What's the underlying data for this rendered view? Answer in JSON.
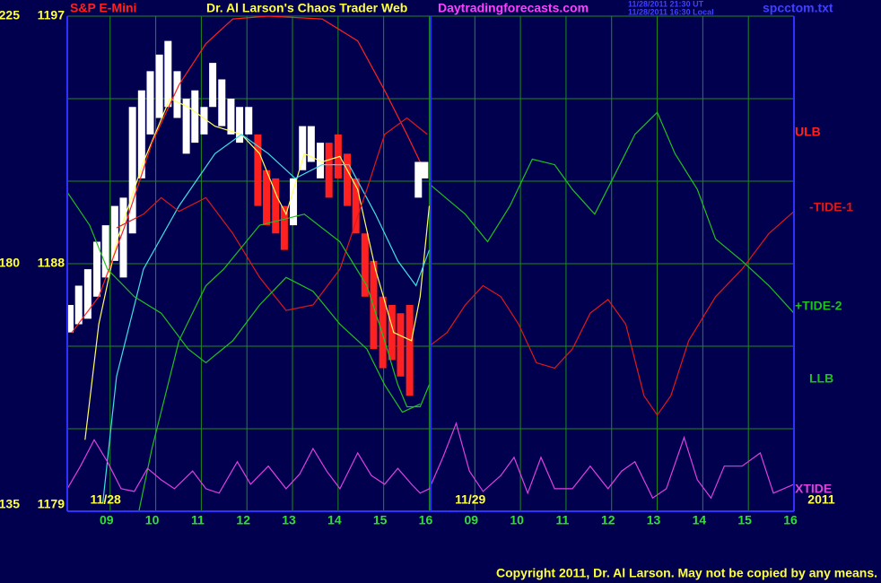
{
  "chart_data": {
    "type": "line",
    "title": "Dr. Al Larson's Chaos Trader Web",
    "instrument": "S&P E-Mini",
    "site": "Daytradingforecasts.com",
    "timestamps": [
      "11/28/2011 21:30 UT",
      "11/28/2011 16:30 Local"
    ],
    "file": "spcctom.txt",
    "copyright": "Copyright 2011, Dr. Al Larson. May not be copied by any means.",
    "xlim": [
      0.06,
      16.0
    ],
    "xticks": [
      {
        "value": 1,
        "label": "09"
      },
      {
        "value": 2,
        "label": "10"
      },
      {
        "value": 3,
        "label": "11"
      },
      {
        "value": 4,
        "label": "12"
      },
      {
        "value": 5,
        "label": "13"
      },
      {
        "value": 6,
        "label": "14"
      },
      {
        "value": 7,
        "label": "15"
      },
      {
        "value": 8,
        "label": "16"
      },
      {
        "value": 9,
        "label": "09"
      },
      {
        "value": 10,
        "label": "10"
      },
      {
        "value": 11,
        "label": "11"
      },
      {
        "value": 12,
        "label": "12"
      },
      {
        "value": 13,
        "label": "13"
      },
      {
        "value": 14,
        "label": "14"
      },
      {
        "value": 15,
        "label": "15"
      },
      {
        "value": 16,
        "label": "16"
      }
    ],
    "date_labels": [
      {
        "text": "11/28",
        "x": 0.9
      },
      {
        "text": "11/29",
        "x": 8.9
      },
      {
        "text": "2011",
        "x": 16.6
      }
    ],
    "ylim": [
      1179,
      1197
    ],
    "yticks": [
      1179,
      1188,
      1197
    ],
    "y2lim": [
      135,
      225
    ],
    "y2ticks": [
      135,
      180,
      225
    ],
    "ygrid": [
      1182,
      1185,
      1191,
      1194
    ],
    "grid": true,
    "price": {
      "x": [
        0.12,
        0.31,
        0.51,
        0.71,
        0.9,
        1.1,
        1.29,
        1.49,
        1.69,
        1.88,
        2.08,
        2.27,
        2.47,
        2.67,
        2.86,
        3.06,
        3.25,
        3.45,
        3.65,
        3.84,
        4.04,
        4.24,
        4.43,
        4.63,
        4.82,
        5.02,
        5.22,
        5.41,
        5.61,
        5.8,
        6.0,
        6.2,
        6.39,
        6.59,
        6.78,
        6.98,
        7.18,
        7.37,
        7.57,
        7.76,
        7.9
      ],
      "high": [
        1186.5,
        1187.2,
        1187.8,
        1188.8,
        1189.4,
        1190.1,
        1190.4,
        1193.7,
        1194.3,
        1195.0,
        1195.6,
        1196.1,
        1195.0,
        1194.0,
        1194.3,
        1193.7,
        1195.3,
        1194.7,
        1194.0,
        1193.7,
        1193.7,
        1192.7,
        1191.4,
        1191.1,
        1190.1,
        1191.1,
        1193.0,
        1193.0,
        1192.4,
        1192.4,
        1192.7,
        1192.0,
        1191.1,
        1189.1,
        1188.1,
        1186.8,
        1186.5,
        1186.2,
        1186.5,
        1191.7,
        1191.7
      ],
      "low": [
        1185.5,
        1185.8,
        1186.0,
        1186.8,
        1187.5,
        1188.1,
        1187.5,
        1189.1,
        1191.1,
        1192.7,
        1193.3,
        1193.7,
        1193.3,
        1192.0,
        1192.4,
        1192.7,
        1193.7,
        1193.0,
        1192.7,
        1192.4,
        1192.7,
        1190.1,
        1189.4,
        1189.1,
        1188.5,
        1189.4,
        1191.4,
        1191.7,
        1191.1,
        1190.4,
        1191.1,
        1190.1,
        1189.1,
        1186.8,
        1184.9,
        1184.2,
        1184.5,
        1183.9,
        1183.2,
        1190.4,
        1191.1
      ],
      "colors": [
        "#ffffff",
        "#ffffff",
        "#ffffff",
        "#ffffff",
        "#ffffff",
        "#ffffff",
        "#ffffff",
        "#ffffff",
        "#ffffff",
        "#ffffff",
        "#ffffff",
        "#ffffff",
        "#ffffff",
        "#ffffff",
        "#ffffff",
        "#ffffff",
        "#ffffff",
        "#ffffff",
        "#ffffff",
        "#ffffff",
        "#ffffff",
        "#ff2020",
        "#ff2020",
        "#ff2020",
        "#ff2020",
        "#ffffff",
        "#ffffff",
        "#ffffff",
        "#ffffff",
        "#ff2020",
        "#ff2020",
        "#ff2020",
        "#ff2020",
        "#ff2020",
        "#ff2020",
        "#ff2020",
        "#ff2020",
        "#ff2020",
        "#ff2020",
        "#ffffff",
        "#ffffff"
      ]
    },
    "series": [
      {
        "color": "#ffff60",
        "x": [
          0.45,
          0.75,
          1.14,
          1.73,
          2.31,
          2.71,
          3.3,
          3.88,
          4.28,
          4.67,
          4.86,
          5.26,
          5.65,
          6.04,
          6.43,
          6.82,
          7.22,
          7.61,
          7.8,
          8.0
        ],
        "values": [
          1181.6,
          1185.8,
          1188.8,
          1191.7,
          1194.0,
          1193.7,
          1193.0,
          1192.7,
          1192.0,
          1190.4,
          1189.8,
          1192.0,
          1191.7,
          1191.9,
          1190.7,
          1187.8,
          1185.5,
          1185.2,
          1186.8,
          1190.1
        ]
      },
      {
        "color": "#40e0e0",
        "x": [
          0.84,
          1.14,
          1.73,
          2.51,
          3.3,
          3.88,
          4.47,
          5.06,
          5.65,
          6.24,
          6.82,
          7.31,
          7.71,
          8.0
        ],
        "values": [
          1179.3,
          1183.9,
          1187.8,
          1190.1,
          1192.0,
          1192.7,
          1192.0,
          1191.1,
          1191.6,
          1191.6,
          1189.8,
          1188.1,
          1187.2,
          1188.5
        ]
      },
      {
        "name": "ULB",
        "color": "#ff2020",
        "x": [
          0.16,
          0.75,
          1.33,
          1.92,
          2.51,
          3.1,
          3.69,
          4.47,
          5.65,
          6.43,
          7.02,
          7.51,
          7.8
        ],
        "values": [
          1185.5,
          1186.8,
          1189.4,
          1192.4,
          1194.5,
          1196.0,
          1196.9,
          1197.0,
          1196.9,
          1196.1,
          1194.3,
          1192.7,
          1191.7
        ]
      },
      {
        "name": "-TIDE-1",
        "color": "#e01818",
        "x": [
          1.14,
          1.73,
          2.12,
          2.51,
          3.1,
          3.69,
          4.28,
          4.86,
          5.45,
          6.04,
          6.63,
          7.02,
          7.51,
          7.96,
          7.98,
          8.0,
          8.39,
          8.79,
          9.18,
          9.57,
          9.96,
          10.35,
          10.75,
          11.14,
          11.53,
          11.92,
          12.31,
          12.71,
          13.0,
          13.3,
          13.69,
          14.28,
          14.86,
          15.45,
          16.0
        ],
        "values": [
          1189.3,
          1189.8,
          1190.4,
          1189.9,
          1190.4,
          1189.1,
          1187.5,
          1186.3,
          1186.5,
          1187.8,
          1190.7,
          1192.7,
          1193.3,
          1192.7,
          null,
          1185.0,
          1185.5,
          1186.5,
          1187.2,
          1186.8,
          1185.8,
          1184.4,
          1184.2,
          1184.9,
          1186.2,
          1186.7,
          1185.8,
          1183.2,
          1182.5,
          1183.2,
          1185.2,
          1186.8,
          1187.8,
          1189.1,
          1189.9
        ]
      },
      {
        "name": "+TIDE-2",
        "color": "#20c020",
        "x": [
          0.06,
          0.55,
          0.94,
          1.53,
          2.12,
          2.71,
          3.1,
          3.69,
          4.28,
          4.86,
          5.45,
          6.04,
          6.63,
          7.02,
          7.41,
          7.8,
          7.98,
          8.0,
          8.79,
          9.28,
          9.77,
          10.26,
          10.75,
          11.14,
          11.63,
          12.12,
          12.51,
          13.0,
          13.39,
          13.88,
          14.28,
          14.86,
          15.45,
          16.0
        ],
        "values": [
          1190.6,
          1189.4,
          1187.8,
          1186.8,
          1186.2,
          1184.9,
          1184.4,
          1185.2,
          1186.5,
          1187.5,
          1187.0,
          1185.8,
          1184.9,
          1183.6,
          1182.6,
          1182.9,
          null,
          1190.9,
          1189.8,
          1188.8,
          1190.1,
          1191.8,
          1191.6,
          1190.7,
          1189.8,
          1191.4,
          1192.7,
          1193.5,
          1192.0,
          1190.7,
          1188.9,
          1188.1,
          1187.2,
          1186.2
        ]
      },
      {
        "name": "LLB",
        "color": "#20c020",
        "x": [
          1.63,
          1.92,
          2.51,
          3.1,
          3.49,
          4.28,
          5.26,
          6.04,
          6.63,
          7.02,
          7.31,
          7.51,
          7.8,
          8.0
        ],
        "values": [
          1179.0,
          1181.3,
          1185.2,
          1187.2,
          1187.8,
          1189.4,
          1189.8,
          1188.8,
          1187.2,
          1185.2,
          1183.6,
          1182.8,
          1182.8,
          1183.6
        ]
      },
      {
        "name": "XTIDE",
        "color": "#e040e0",
        "axis": "y2",
        "x": [
          0.06,
          0.35,
          0.65,
          0.94,
          1.24,
          1.53,
          1.82,
          2.12,
          2.41,
          2.81,
          3.1,
          3.39,
          3.79,
          4.08,
          4.47,
          4.86,
          5.16,
          5.45,
          5.75,
          6.04,
          6.43,
          6.73,
          7.02,
          7.31,
          7.61,
          7.8,
          8.0,
          8.3,
          8.59,
          8.88,
          9.18,
          9.57,
          9.86,
          10.16,
          10.45,
          10.75,
          11.14,
          11.53,
          11.92,
          12.22,
          12.51,
          12.9,
          13.2,
          13.59,
          13.88,
          14.18,
          14.47,
          14.86,
          15.26,
          15.55,
          16.0
        ],
        "values": [
          139.1,
          143.2,
          148.0,
          144.0,
          139.1,
          138.6,
          142.8,
          140.7,
          139.1,
          142.3,
          139.1,
          138.3,
          144.0,
          139.9,
          143.2,
          139.1,
          141.8,
          146.4,
          142.3,
          139.1,
          145.6,
          141.5,
          139.9,
          142.8,
          139.9,
          138.3,
          139.1,
          144.8,
          151.0,
          142.3,
          138.6,
          141.5,
          144.8,
          138.3,
          144.8,
          139.1,
          139.1,
          143.2,
          139.1,
          142.3,
          144.0,
          137.4,
          139.1,
          148.4,
          140.7,
          137.4,
          143.2,
          143.2,
          145.6,
          138.3,
          139.9
        ]
      }
    ]
  }
}
